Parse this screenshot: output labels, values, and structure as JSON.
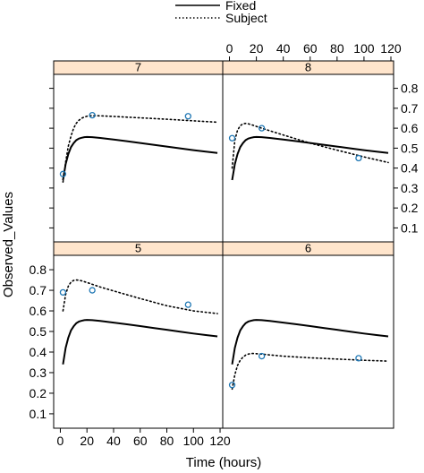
{
  "chart_data": {
    "type": "line",
    "layout": "lattice 2x2 panels",
    "xlabel": "Time (hours)",
    "ylabel": "Observed_Values",
    "xlim": [
      -5,
      122
    ],
    "ylim": [
      0.03,
      0.87
    ],
    "x_ticks": [
      0,
      20,
      40,
      60,
      80,
      100,
      120
    ],
    "y_ticks": [
      0.1,
      0.2,
      0.3,
      0.4,
      0.5,
      0.6,
      0.7,
      0.8
    ],
    "legend": {
      "position": "top",
      "entries": [
        {
          "label": "Fixed",
          "line": "solid"
        },
        {
          "label": "Subject",
          "line": "dotted"
        }
      ]
    },
    "colors": {
      "strip": "#ffe5cc",
      "points": "#1f77b4",
      "lines": "#000000"
    },
    "fixed_curve": {
      "x": [
        2,
        4,
        6,
        8,
        10,
        12,
        14,
        16,
        18,
        20,
        24,
        30,
        40,
        50,
        60,
        70,
        80,
        90,
        100,
        110,
        118
      ],
      "y": [
        0.34,
        0.42,
        0.47,
        0.505,
        0.525,
        0.54,
        0.548,
        0.552,
        0.555,
        0.556,
        0.555,
        0.551,
        0.543,
        0.535,
        0.526,
        0.517,
        0.508,
        0.499,
        0.49,
        0.482,
        0.476
      ]
    },
    "panels": [
      {
        "strip": "7",
        "row": 0,
        "col": 0,
        "subject_curve": {
          "x": [
            2,
            4,
            6,
            8,
            10,
            12,
            14,
            16,
            18,
            20,
            24,
            30,
            40,
            60,
            80,
            100,
            118
          ],
          "y": [
            0.33,
            0.43,
            0.51,
            0.56,
            0.6,
            0.625,
            0.64,
            0.65,
            0.656,
            0.66,
            0.663,
            0.662,
            0.659,
            0.652,
            0.645,
            0.637,
            0.63
          ]
        },
        "points": [
          {
            "x": 2,
            "y": 0.37
          },
          {
            "x": 24,
            "y": 0.665
          },
          {
            "x": 96,
            "y": 0.66
          }
        ]
      },
      {
        "strip": "8",
        "row": 0,
        "col": 1,
        "subject_curve": {
          "x": [
            2,
            4,
            6,
            8,
            10,
            12,
            14,
            16,
            18,
            20,
            24,
            30,
            40,
            60,
            80,
            100,
            118
          ],
          "y": [
            0.4,
            0.54,
            0.59,
            0.612,
            0.622,
            0.624,
            0.622,
            0.618,
            0.614,
            0.609,
            0.6,
            0.587,
            0.566,
            0.525,
            0.49,
            0.456,
            0.428
          ]
        },
        "points": [
          {
            "x": 2,
            "y": 0.55
          },
          {
            "x": 24,
            "y": 0.6
          },
          {
            "x": 96,
            "y": 0.45
          }
        ]
      },
      {
        "strip": "5",
        "row": 1,
        "col": 0,
        "subject_curve": {
          "x": [
            2,
            4,
            6,
            8,
            10,
            12,
            14,
            16,
            18,
            20,
            24,
            30,
            40,
            60,
            80,
            100,
            118
          ],
          "y": [
            0.6,
            0.68,
            0.72,
            0.74,
            0.748,
            0.75,
            0.749,
            0.746,
            0.742,
            0.738,
            0.729,
            0.716,
            0.697,
            0.66,
            0.625,
            0.6,
            0.587
          ]
        },
        "points": [
          {
            "x": 2,
            "y": 0.69
          },
          {
            "x": 24,
            "y": 0.7
          },
          {
            "x": 96,
            "y": 0.63
          }
        ]
      },
      {
        "strip": "6",
        "row": 1,
        "col": 1,
        "subject_curve": {
          "x": [
            2,
            4,
            6,
            8,
            10,
            12,
            14,
            16,
            18,
            20,
            24,
            30,
            40,
            60,
            80,
            100,
            118
          ],
          "y": [
            0.22,
            0.29,
            0.335,
            0.36,
            0.375,
            0.385,
            0.39,
            0.393,
            0.393,
            0.392,
            0.39,
            0.386,
            0.38,
            0.372,
            0.366,
            0.36,
            0.356
          ]
        },
        "points": [
          {
            "x": 2,
            "y": 0.24
          },
          {
            "x": 24,
            "y": 0.38
          },
          {
            "x": 96,
            "y": 0.37
          }
        ]
      }
    ]
  }
}
